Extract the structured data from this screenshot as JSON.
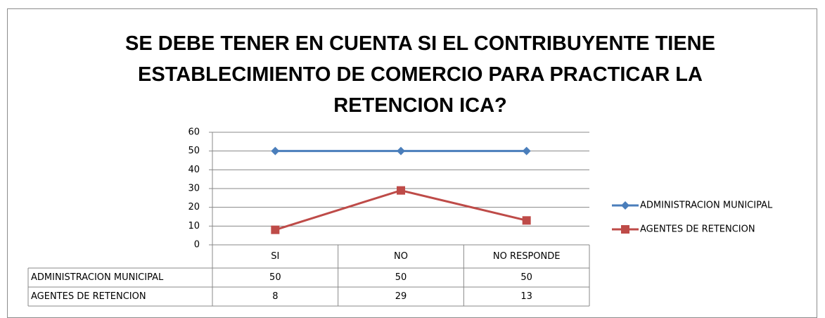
{
  "chart_data": {
    "type": "line",
    "title": "SE DEBE TENER EN CUENTA SI EL CONTRIBUYENTE TIENE ESTABLECIMIENTO DE COMERCIO PARA PRACTICAR LA RETENCION ICA?",
    "categories": [
      "SI",
      "NO",
      "NO RESPONDE"
    ],
    "series": [
      {
        "name": "ADMINISTRACION MUNICIPAL",
        "color": "#4a7ebb",
        "values": [
          50,
          50,
          50
        ]
      },
      {
        "name": "AGENTES DE RETENCION",
        "color": "#be4b48",
        "values": [
          8,
          29,
          13
        ]
      }
    ],
    "ylim": [
      0,
      60
    ],
    "yticks": [
      0,
      10,
      20,
      30,
      40,
      50,
      60
    ],
    "grid": true,
    "legend": "right"
  }
}
